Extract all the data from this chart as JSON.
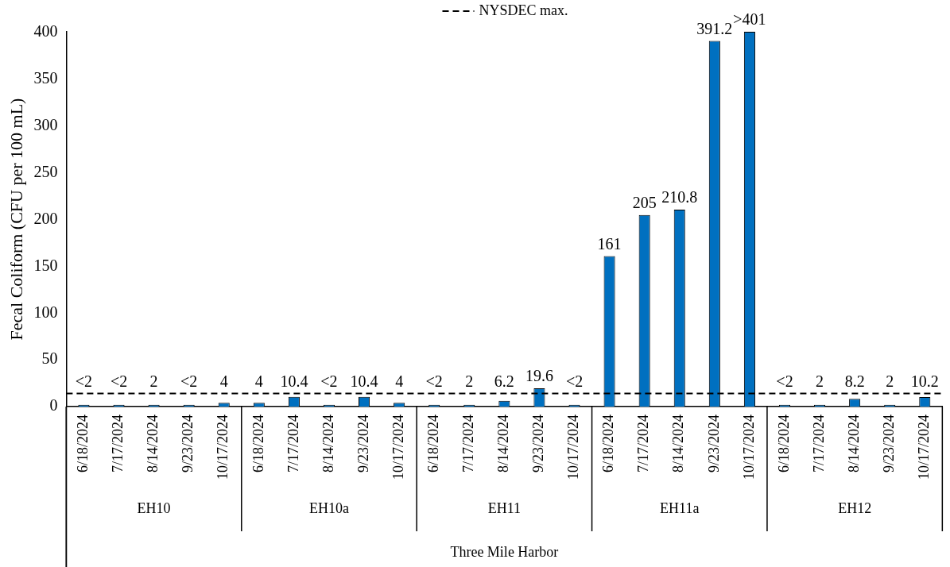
{
  "chart_data": {
    "type": "bar",
    "ylabel": "Fecal Coliform (CFU per 100 mL)",
    "categories": [
      "6/18/2024",
      "7/17/2024",
      "8/14/2024",
      "9/23/2024",
      "10/17/2024",
      "6/18/2024",
      "7/17/2024",
      "8/14/2024",
      "9/23/2024",
      "10/17/2024",
      "6/18/2024",
      "7/17/2024",
      "8/14/2024",
      "9/23/2024",
      "10/17/2024",
      "6/18/2024",
      "7/17/2024",
      "8/14/2024",
      "9/23/2024",
      "10/17/2024",
      "6/18/2024",
      "7/17/2024",
      "8/14/2024",
      "9/23/2024",
      "10/17/2024"
    ],
    "values": [
      2,
      2,
      2,
      2,
      4,
      4,
      10.4,
      2,
      10.4,
      4,
      2,
      2,
      6.2,
      19.6,
      2,
      161,
      205,
      210.8,
      391.2,
      401,
      2,
      2,
      8.2,
      2,
      10.2
    ],
    "value_labels": [
      "<2",
      "<2",
      "2",
      "<2",
      "4",
      "4",
      "10.4",
      "<2",
      "10.4",
      "4",
      "<2",
      "2",
      "6.2",
      "19.6",
      "<2",
      "161",
      "205",
      "210.8",
      "391.2",
      ">401",
      "<2",
      "2",
      "8.2",
      "2",
      "10.2"
    ],
    "color": "#0070c0",
    "ylim": [
      0,
      401
    ],
    "yticks": [
      0,
      50,
      100,
      150,
      200,
      250,
      300,
      350,
      400
    ],
    "grid": false,
    "ref_lines": [
      {
        "axis": "y",
        "value": 14,
        "label": "NYSDEC max.",
        "color": "#000000",
        "line_style": "dashed"
      }
    ],
    "legend": "top",
    "annotations": [
      "EH10",
      "EH10a",
      "EH11",
      "EH11a",
      "EH12",
      "Three Mile Harbor"
    ]
  }
}
